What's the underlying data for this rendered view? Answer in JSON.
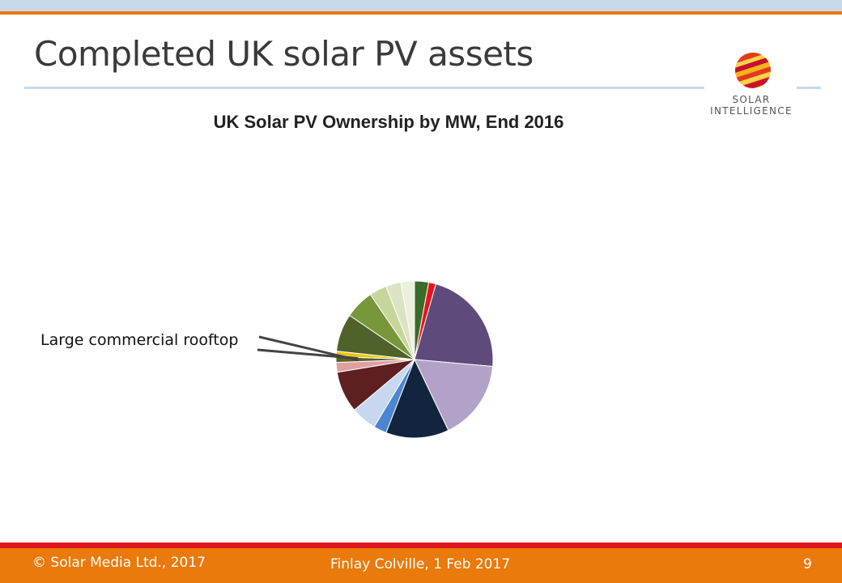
{
  "slide": {
    "title": "Completed UK solar PV assets",
    "logo_line1": "SOLAR",
    "logo_line2": "INTELLIGENCE",
    "callout": "Large commercial rooftop"
  },
  "footer": {
    "copyright": "© Solar Media Ltd., 2017",
    "author_date": "Finlay Colville, 1 Feb 2017",
    "page_number": "9"
  },
  "colors": {
    "accent_orange": "#ea7a0b",
    "accent_red": "#e2151b",
    "title_rule": "#c9d8ea"
  },
  "chart_data": {
    "type": "pie",
    "title": "UK Solar PV Ownership by MW, End 2016",
    "start": "top",
    "direction": "clockwise",
    "legend": "none",
    "slices": [
      {
        "value": 2.9,
        "color": "#3a6b2a"
      },
      {
        "value": 1.5,
        "color": "#e8141a"
      },
      {
        "value": 22.0,
        "color": "#5f4a7c"
      },
      {
        "value": 16.5,
        "color": "#b3a2c8"
      },
      {
        "value": 13.0,
        "color": "#13243f"
      },
      {
        "value": 2.7,
        "color": "#4a86d1"
      },
      {
        "value": 5.3,
        "color": "#c6d7ef"
      },
      {
        "value": 8.5,
        "color": "#5e1f20"
      },
      {
        "value": 2.0,
        "color": "#e0a0a0"
      },
      {
        "value": 1.2,
        "color": "#53622b"
      },
      {
        "value": 1.1,
        "color": "#f1c40f"
      },
      {
        "value": 7.8,
        "color": "#4f6229"
      },
      {
        "value": 6.0,
        "color": "#78973a"
      },
      {
        "value": 3.6,
        "color": "#c6d69b"
      },
      {
        "value": 3.1,
        "color": "#dbe4c2"
      },
      {
        "value": 2.8,
        "color": "#eaf0dc"
      }
    ],
    "callout_slice": 9
  }
}
